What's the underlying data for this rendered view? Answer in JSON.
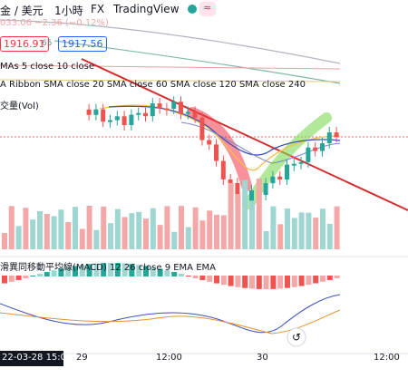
{
  "header": {
    "symbol": "金 / 美元",
    "interval": "1小時",
    "market": "FX",
    "source": "TradingView",
    "change": "033.06 −2.36 (−0.12%)",
    "bid": "1916.91",
    "spread": "65",
    "ask": "1917.56"
  },
  "indicators": {
    "mas": "MAs 5 close 10 close",
    "ribbon": "A Ribbon SMA close 20 SMA close 60 SMA close 120 SMA close 240",
    "volume": "交量(Vol)",
    "macd": "滑異同移動平均線(MACD) 12 26 close 9 EMA EMA"
  },
  "x_axis": {
    "cursor": "22-03-28 15:00",
    "labels": [
      "29",
      "12:00",
      "30",
      "12:00"
    ]
  }
}
